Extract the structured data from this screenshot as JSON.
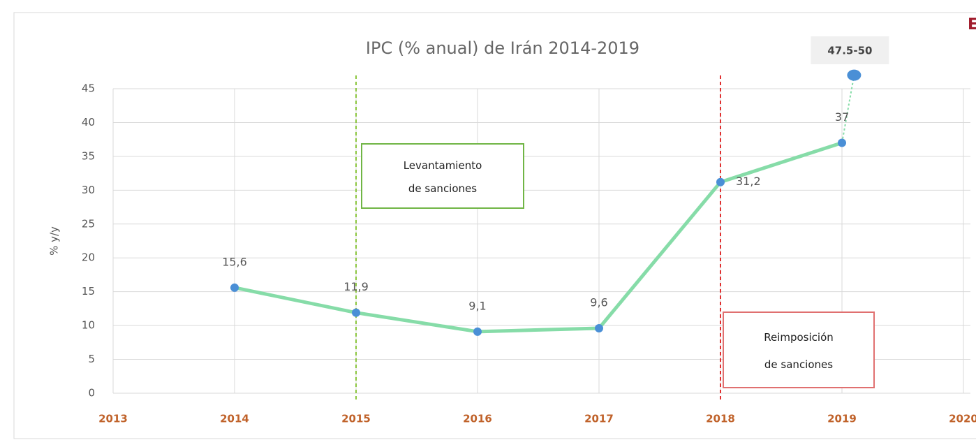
{
  "chart_data": {
    "type": "line",
    "title": "IPC (% anual) de Irán 2014-2019",
    "ylabel": "% y/y",
    "corner_text": "E",
    "x": [
      2014,
      2015,
      2016,
      2017,
      2018,
      2019
    ],
    "series": [
      {
        "color": "#86dca8",
        "marker_color": "#4a8fd6",
        "values": [
          15.6,
          11.9,
          9.1,
          9.6,
          31.2,
          37
        ],
        "value_labels": [
          "15,6",
          "11,9",
          "9,1",
          "9,6",
          "31,2",
          "37"
        ]
      }
    ],
    "forecast": {
      "x": 2019.1,
      "value": 47,
      "label": "47.5-50"
    },
    "xlim": [
      2013,
      2020
    ],
    "xticks": [
      2013,
      2014,
      2015,
      2016,
      2017,
      2018,
      2019,
      2020
    ],
    "ylim": [
      0,
      45
    ],
    "yticks": [
      0,
      5,
      10,
      15,
      20,
      25,
      30,
      35,
      40,
      45
    ],
    "grid": true,
    "vlines": [
      {
        "x": 2015,
        "color": "#8cc63f"
      },
      {
        "x": 2018,
        "color": "#e03030"
      }
    ],
    "annotations": [
      {
        "lines": [
          "Levantamiento",
          "de sanciones"
        ],
        "color": "#70b545"
      },
      {
        "lines": [
          "Reimposición",
          "de sanciones"
        ],
        "color": "#e07070"
      }
    ]
  }
}
